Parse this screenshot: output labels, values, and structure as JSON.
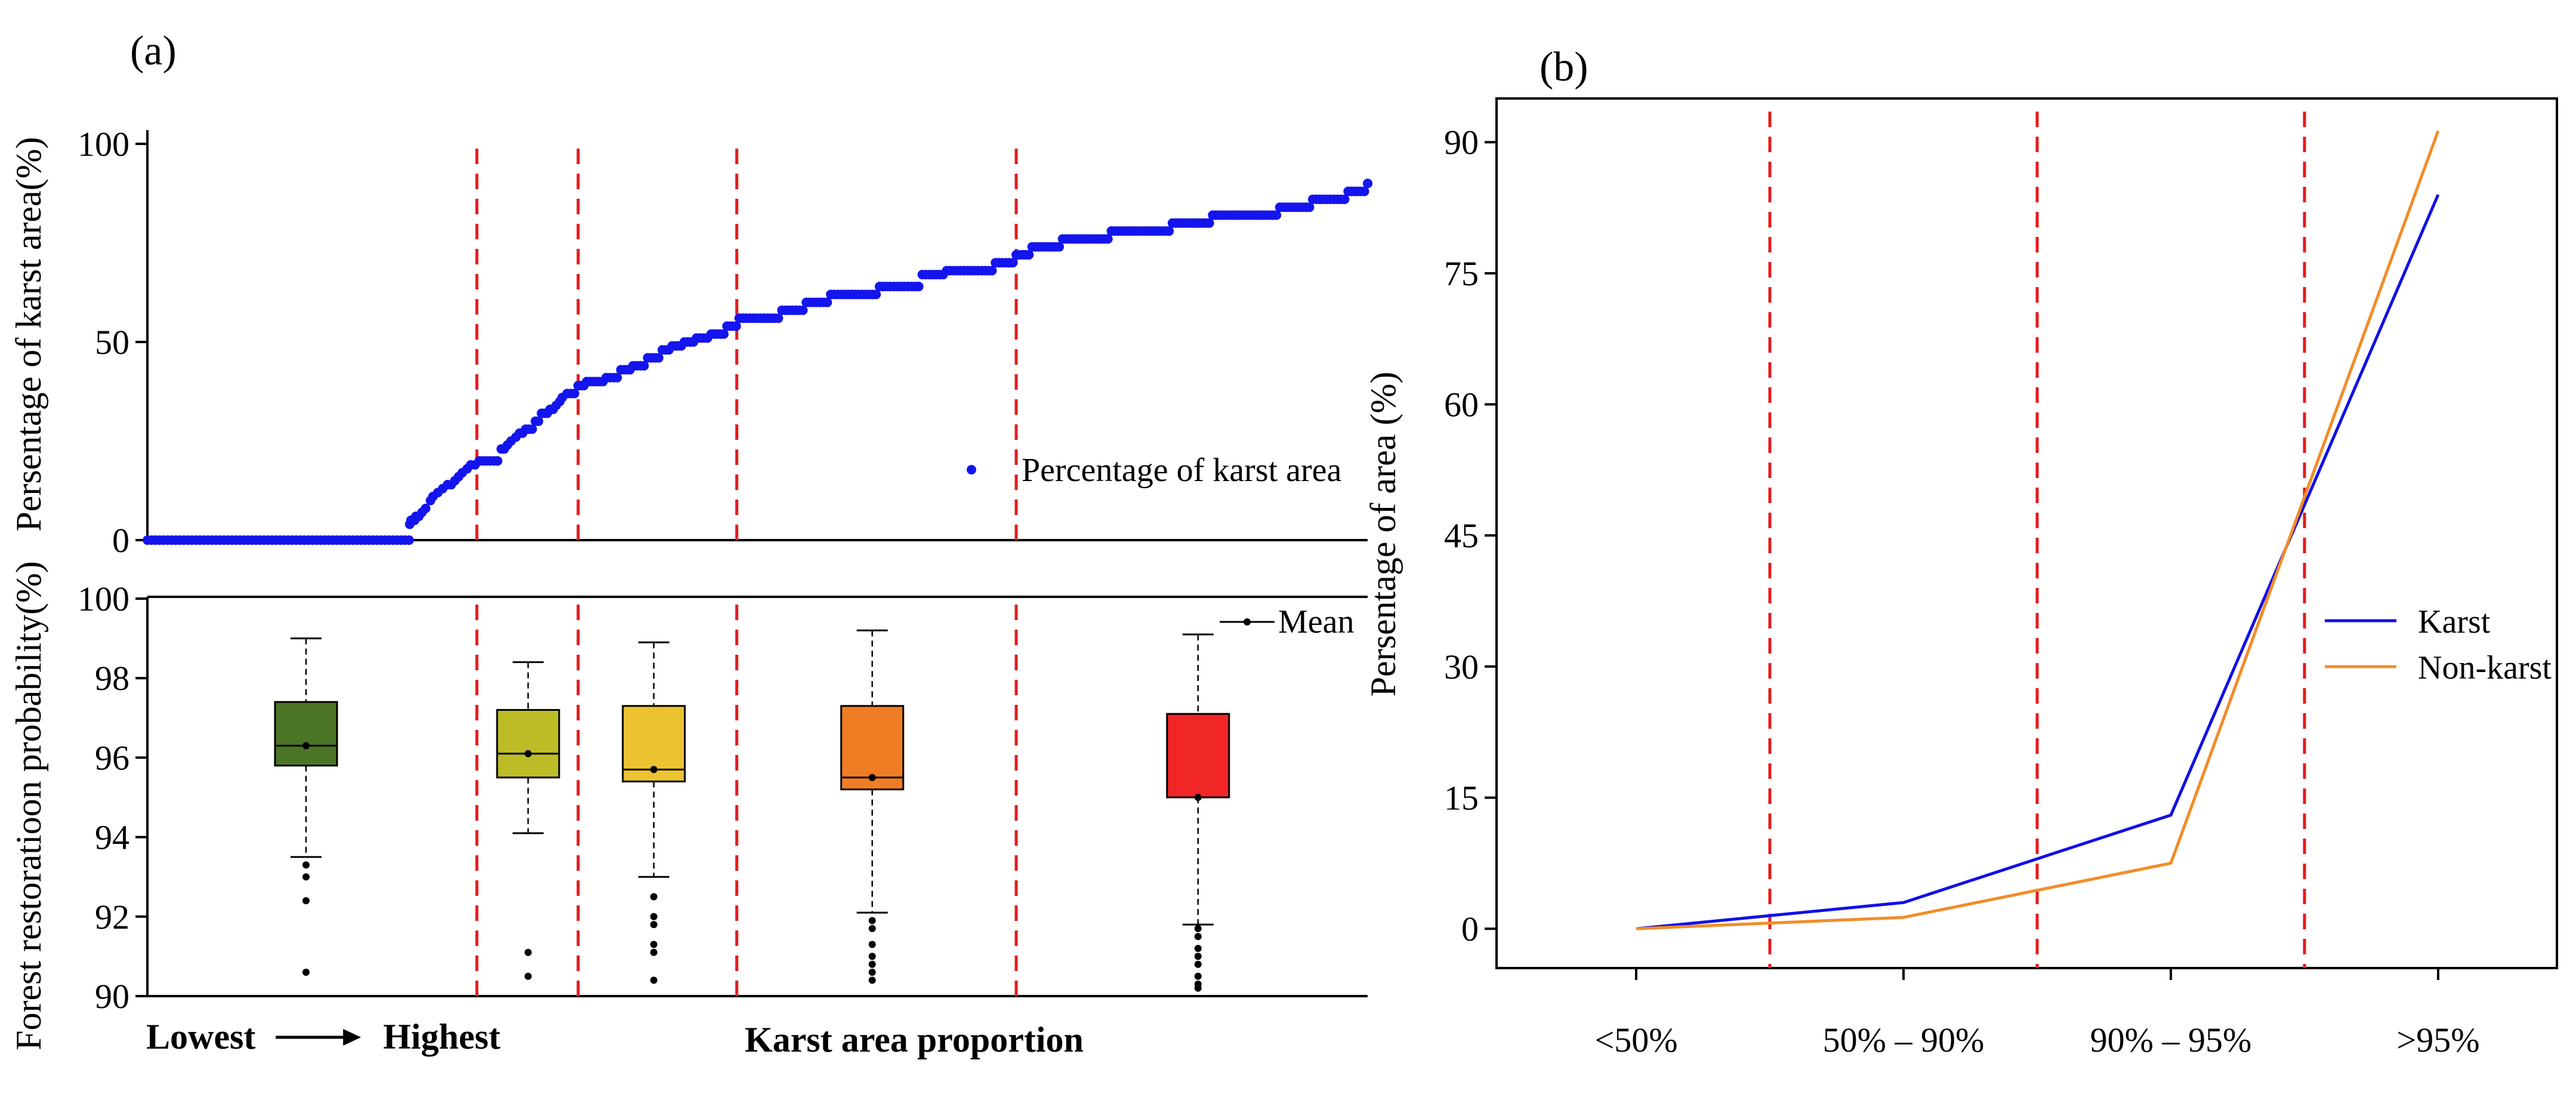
{
  "colors": {
    "blue_series": "#1414ee",
    "dashed_lines": "#e41a1c",
    "karst_line": "#1010e6",
    "nonkarst_line": "#f28c28",
    "box_colors": [
      "#4c7526",
      "#bcbc26",
      "#ecc230",
      "#f07d24",
      "#f12626"
    ]
  },
  "chart_data": [
    {
      "id": "a-top",
      "panel_label": "(a)",
      "type": "scatter",
      "ylabel": "Persentage of karst area(%)",
      "ylim": [
        0,
        100
      ],
      "yticks": [
        0,
        50,
        100
      ],
      "xlim": [
        0,
        100
      ],
      "legend": {
        "label": "Percentage of karst area",
        "position": "center-right"
      },
      "dividers_x": [
        27,
        35.3,
        48.3,
        71.2
      ],
      "points_x": [
        0,
        21.5,
        21.6,
        21.8,
        21.9,
        22.0,
        22.5,
        22.8,
        23.2,
        23.4,
        23.8,
        24.2,
        24.6,
        25.2,
        25.5,
        25.8,
        26.2,
        26.5,
        27.2,
        28.7,
        29.0,
        29.5,
        29.8,
        30.2,
        30.5,
        31.0,
        31.8,
        32.3,
        33.0,
        33.5,
        33.8,
        34.0,
        34.4,
        35.3,
        36.0,
        37.6,
        38.8,
        39.8,
        41.0,
        42.2,
        43.0,
        44.0,
        45.0,
        46.2,
        47.5,
        48.5,
        52.0,
        54.0,
        56.0,
        60.0,
        63.5,
        65.5,
        69.5,
        71.2,
        72.5,
        75.0,
        79.0,
        84.0,
        87.3,
        92.8,
        95.5,
        98.4,
        100.0
      ],
      "points_y": [
        0,
        4,
        5,
        5,
        5,
        6,
        7,
        8,
        10,
        11,
        12,
        13,
        14,
        15,
        16,
        17,
        18,
        19,
        20,
        20,
        23,
        24,
        25,
        26,
        27,
        28,
        30,
        32,
        33,
        34,
        35,
        36,
        37,
        39,
        40,
        41,
        43,
        44,
        46,
        48,
        49,
        50,
        51,
        52,
        54,
        56,
        58,
        60,
        62,
        64,
        67,
        68,
        70,
        72,
        74,
        76,
        78,
        80,
        82,
        84,
        86,
        88,
        90
      ]
    },
    {
      "id": "a-bottom",
      "type": "box",
      "ylabel": "Forest restoratioon probability(%)",
      "ylim": [
        90,
        100
      ],
      "yticks": [
        90,
        92,
        94,
        96,
        98,
        100
      ],
      "xlim": [
        0,
        100
      ],
      "xlabel": "Karst area proportion",
      "x_arrow_start": "Lowest",
      "x_arrow_end": "Highest",
      "legend": {
        "label": "Mean",
        "position": "top-right"
      },
      "dividers_x": [
        27,
        35.3,
        48.3,
        71.2
      ],
      "boxes": [
        {
          "center": 13,
          "q1": 95.8,
          "median": 96.3,
          "q3": 97.4,
          "whisker_low": 93.5,
          "whisker_high": 99.0,
          "mean": 96.3,
          "outliers": [
            93.3,
            93.0,
            92.4,
            90.6
          ]
        },
        {
          "center": 31.2,
          "q1": 95.5,
          "median": 96.1,
          "q3": 97.2,
          "whisker_low": 94.1,
          "whisker_high": 98.4,
          "mean": 96.1,
          "outliers": [
            91.1,
            90.5
          ]
        },
        {
          "center": 41.5,
          "q1": 95.4,
          "median": 95.7,
          "q3": 97.3,
          "whisker_low": 93.0,
          "whisker_high": 98.9,
          "mean": 95.7,
          "outliers": [
            92.5,
            92.0,
            91.8,
            91.3,
            91.1,
            90.4
          ]
        },
        {
          "center": 59.4,
          "q1": 95.2,
          "median": 95.5,
          "q3": 97.3,
          "whisker_low": 92.1,
          "whisker_high": 99.2,
          "mean": 95.5,
          "outliers": [
            91.9,
            91.7,
            91.3,
            91.0,
            90.8,
            90.6,
            90.4
          ]
        },
        {
          "center": 86.1,
          "q1": 95.0,
          "median": 95.0,
          "q3": 97.1,
          "whisker_low": 91.8,
          "whisker_high": 99.1,
          "mean": 95.0,
          "outliers": [
            91.7,
            91.5,
            91.2,
            91.0,
            90.8,
            90.5,
            90.3,
            90.2
          ]
        }
      ]
    },
    {
      "id": "b",
      "panel_label": "(b)",
      "type": "line",
      "ylabel": "Persentage of area (%)",
      "ylim": [
        -4.5,
        95
      ],
      "yticks": [
        0,
        15,
        30,
        45,
        60,
        75,
        90
      ],
      "categories": [
        "<50%",
        "50% – 90%",
        "90% – 95%",
        ">95%"
      ],
      "dividers_x": [
        0.5,
        1.5,
        2.5
      ],
      "legend_position": "center-right",
      "series": [
        {
          "name": "Karst",
          "values": [
            0,
            3,
            13,
            84
          ]
        },
        {
          "name": "Non-karst",
          "values": [
            0,
            1.3,
            7.5,
            91.3
          ]
        }
      ]
    }
  ]
}
